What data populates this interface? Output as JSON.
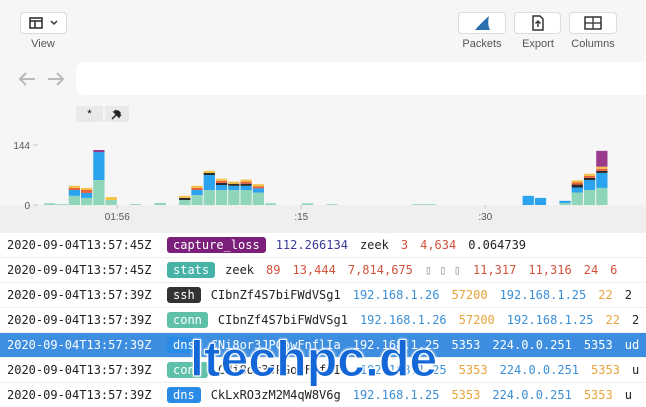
{
  "toolbar": {
    "view": "View",
    "buttons": [
      "Packets",
      "Export",
      "Columns"
    ]
  },
  "search": {
    "pins": [
      "*"
    ]
  },
  "chart_data": {
    "type": "histogram",
    "bins": [
      -6,
      -5,
      -4,
      -3,
      -2,
      -1,
      0,
      1,
      2,
      3,
      4,
      5,
      6,
      7,
      8,
      9,
      10,
      11,
      12,
      13,
      14,
      15,
      16,
      17,
      18,
      19,
      20,
      21,
      22,
      23,
      24,
      25,
      26,
      27,
      28,
      29,
      30,
      31,
      32,
      33,
      34,
      35,
      36,
      37,
      38,
      39,
      40
    ],
    "series": [
      {
        "color": "#8fd5b9",
        "values": [
          4,
          2,
          22,
          17,
          60,
          12,
          0,
          2,
          0,
          5,
          0,
          12,
          24,
          36,
          36,
          36,
          36,
          30,
          4,
          0,
          0,
          4,
          0,
          2,
          0,
          0,
          0,
          0,
          0,
          0,
          2,
          2,
          0,
          0,
          0,
          0,
          0,
          0,
          0,
          0,
          0,
          0,
          5,
          30,
          36,
          41
        ]
      },
      {
        "color": "#2ba3ef",
        "values": [
          0,
          0,
          14,
          12,
          67,
          0,
          0,
          0,
          0,
          0,
          0,
          0,
          12,
          36,
          12,
          10,
          10,
          10,
          0,
          0,
          0,
          0,
          0,
          0,
          0,
          0,
          0,
          0,
          0,
          0,
          0,
          0,
          0,
          0,
          0,
          0,
          0,
          0,
          0,
          22,
          17,
          0,
          5,
          12,
          24,
          36
        ]
      },
      {
        "color": "#2b2b2b",
        "values": [
          0,
          0,
          0,
          0,
          0,
          0,
          0,
          0,
          0,
          0,
          0,
          5,
          0,
          5,
          5,
          5,
          5,
          0,
          0,
          0,
          0,
          0,
          0,
          0,
          0,
          0,
          0,
          0,
          0,
          0,
          0,
          0,
          0,
          0,
          0,
          0,
          0,
          0,
          0,
          0,
          0,
          0,
          0,
          7,
          5,
          5
        ]
      },
      {
        "color": "#e8623f",
        "values": [
          0,
          0,
          5,
          7,
          0,
          0,
          0,
          0,
          0,
          0,
          0,
          0,
          5,
          0,
          5,
          0,
          5,
          5,
          0,
          0,
          0,
          0,
          0,
          0,
          0,
          0,
          0,
          0,
          0,
          0,
          0,
          0,
          0,
          0,
          0,
          0,
          0,
          0,
          0,
          0,
          0,
          0,
          0,
          5,
          5,
          5
        ]
      },
      {
        "color": "#f4c144",
        "values": [
          0,
          0,
          5,
          5,
          0,
          7,
          0,
          0,
          0,
          0,
          0,
          5,
          5,
          5,
          5,
          5,
          5,
          5,
          0,
          0,
          0,
          0,
          0,
          0,
          0,
          0,
          0,
          0,
          0,
          0,
          0,
          0,
          0,
          0,
          0,
          0,
          0,
          0,
          0,
          0,
          0,
          0,
          0,
          5,
          5,
          5
        ]
      },
      {
        "color": "#9c3a8e",
        "values": [
          0,
          0,
          0,
          0,
          5,
          0,
          0,
          0,
          0,
          0,
          0,
          0,
          0,
          0,
          0,
          0,
          0,
          0,
          0,
          0,
          0,
          0,
          0,
          0,
          0,
          0,
          0,
          0,
          0,
          0,
          0,
          0,
          0,
          0,
          0,
          0,
          0,
          0,
          0,
          0,
          0,
          0,
          0,
          0,
          0,
          38
        ]
      }
    ],
    "xlim": [
      -6.3,
      43.1
    ],
    "ylim": [
      0,
      144
    ],
    "yticks": [
      0,
      144
    ],
    "xticks": [
      {
        "value": 0,
        "label": "01:56"
      },
      {
        "value": 15,
        "label": ":15"
      },
      {
        "value": 30,
        "label": ":30"
      }
    ]
  },
  "log": {
    "selected_row": 4,
    "rows": [
      {
        "timestamp": "2020-09-04T13:57:45Z",
        "path": "capture_loss",
        "path_color": "#7b1f7a",
        "fields": [
          {
            "text": "112.266134",
            "color": "#3b3b9e"
          },
          {
            "text": "zeek",
            "color": "#222222"
          },
          {
            "text": "3",
            "color": "#d2523c"
          },
          {
            "text": "4,634",
            "color": "#d2523c"
          },
          {
            "text": "0.064739",
            "color": "#222222"
          }
        ]
      },
      {
        "timestamp": "2020-09-04T13:57:45Z",
        "path": "stats",
        "path_color": "#47b3a6",
        "fields": [
          {
            "text": "zeek",
            "color": "#222222"
          },
          {
            "text": "89",
            "color": "#d2523c"
          },
          {
            "text": "13,444",
            "color": "#d2523c"
          },
          {
            "text": "7,814,675",
            "color": "#d2523c"
          },
          {
            "text": "▯ ▯ ▯",
            "color": "#999999"
          },
          {
            "text": "11,317",
            "color": "#d2523c"
          },
          {
            "text": "11,316",
            "color": "#d2523c"
          },
          {
            "text": "24",
            "color": "#d2523c"
          },
          {
            "text": "6",
            "color": "#d2523c"
          }
        ]
      },
      {
        "timestamp": "2020-09-04T13:57:39Z",
        "path": "ssh",
        "path_color": "#333333",
        "fields": [
          {
            "text": "CIbnZf4S7biFWdVSg1",
            "color": "#222222"
          },
          {
            "text": "192.168.1.26",
            "color": "#3a8fd8"
          },
          {
            "text": "57200",
            "color": "#e8a33d"
          },
          {
            "text": "192.168.1.25",
            "color": "#3a8fd8"
          },
          {
            "text": "22",
            "color": "#e8a33d"
          },
          {
            "text": "2",
            "color": "#222222"
          }
        ]
      },
      {
        "timestamp": "2020-09-04T13:57:39Z",
        "path": "conn",
        "path_color": "#5ec0a8",
        "fields": [
          {
            "text": "CIbnZf4S7biFWdVSg1",
            "color": "#222222"
          },
          {
            "text": "192.168.1.26",
            "color": "#3a8fd8"
          },
          {
            "text": "57200",
            "color": "#e8a33d"
          },
          {
            "text": "192.168.1.25",
            "color": "#3a8fd8"
          },
          {
            "text": "22",
            "color": "#e8a33d"
          },
          {
            "text": "2",
            "color": "#222222"
          }
        ]
      },
      {
        "timestamp": "2020-09-04T13:57:39Z",
        "path": "dns",
        "path_color": "#2b8ce8",
        "fields": [
          {
            "text": "CNi8or3JPGowFnflIa",
            "color": "#222222"
          },
          {
            "text": "192.168.1.25",
            "color": "#3a8fd8"
          },
          {
            "text": "5353",
            "color": "#e8a33d"
          },
          {
            "text": "224.0.0.251",
            "color": "#3a8fd8"
          },
          {
            "text": "5353",
            "color": "#e8a33d"
          },
          {
            "text": "ud",
            "color": "#222222"
          }
        ]
      },
      {
        "timestamp": "2020-09-04T13:57:39Z",
        "path": "conn",
        "path_color": "#5ec0a8",
        "fields": [
          {
            "text": "CNi8or3JPGowFnflIa",
            "color": "#222222"
          },
          {
            "text": "192.168.1.25",
            "color": "#3a8fd8"
          },
          {
            "text": "5353",
            "color": "#e8a33d"
          },
          {
            "text": "224.0.0.251",
            "color": "#3a8fd8"
          },
          {
            "text": "5353",
            "color": "#e8a33d"
          },
          {
            "text": "u",
            "color": "#222222"
          }
        ]
      },
      {
        "timestamp": "2020-09-04T13:57:39Z",
        "path": "dns",
        "path_color": "#2b8ce8",
        "fields": [
          {
            "text": "CkLxRO3zM2M4qW8V6g",
            "color": "#222222"
          },
          {
            "text": "192.168.1.25",
            "color": "#3a8fd8"
          },
          {
            "text": "5353",
            "color": "#e8a33d"
          },
          {
            "text": "224.0.0.251",
            "color": "#3a8fd8"
          },
          {
            "text": "5353",
            "color": "#e8a33d"
          },
          {
            "text": "u",
            "color": "#222222"
          }
        ]
      }
    ]
  },
  "watermark": "ltechpc.de"
}
